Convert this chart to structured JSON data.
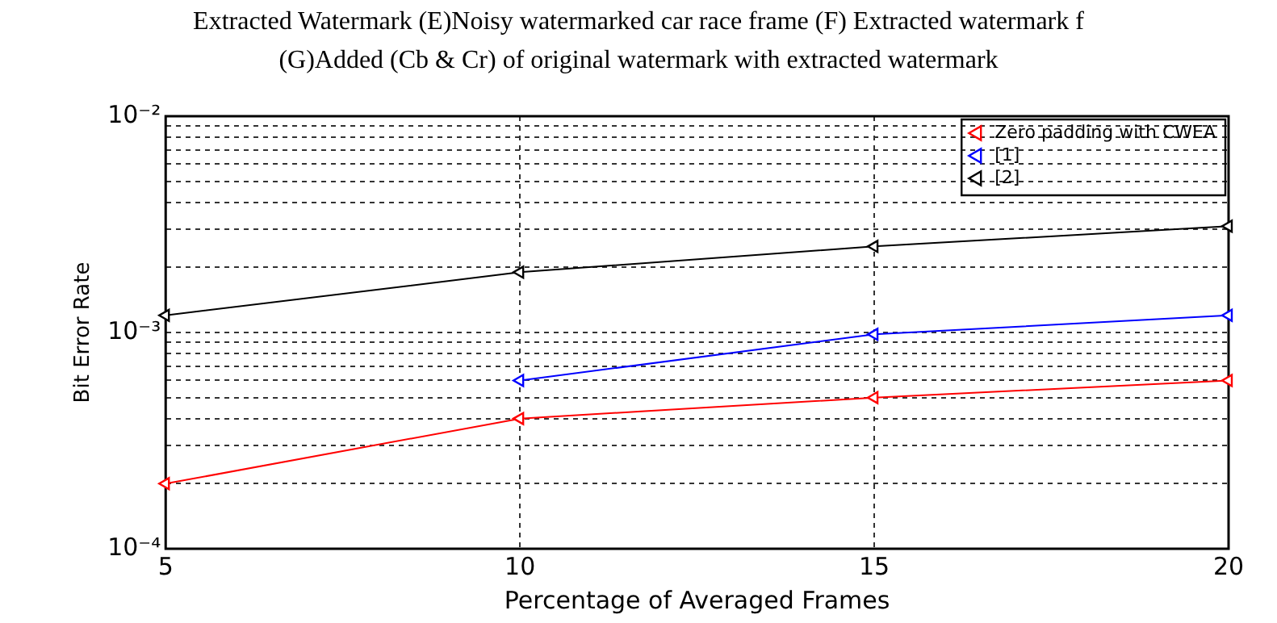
{
  "chart_data": {
    "type": "line",
    "annotations": [
      "Extracted Watermark (E)Noisy watermarked car race frame (F) Extracted watermark f",
      "(G)Added (Cb & Cr) of original watermark with extracted watermark"
    ],
    "xlabel": "Percentage of Averaged Frames",
    "ylabel": "Bit Error Rate",
    "x": [
      5,
      10,
      15,
      20
    ],
    "series": [
      {
        "name": "Zero padding with CWEA",
        "color": "#ff0000",
        "values": [
          0.0002,
          0.0004,
          0.0005,
          0.0006
        ]
      },
      {
        "name": "[1]",
        "color": "#0000ff",
        "values": [
          null,
          0.0006,
          0.00098,
          0.0012
        ]
      },
      {
        "name": "[2]",
        "color": "#000000",
        "values": [
          0.0012,
          0.0019,
          0.0025,
          0.0031
        ]
      }
    ],
    "log": "y",
    "xlim": [
      5,
      20
    ],
    "xticks": [
      5,
      10,
      15,
      20
    ],
    "ylim": [
      0.0001,
      0.01
    ],
    "yticks": [
      {
        "value": 0.0001,
        "label": "10⁻⁴"
      },
      {
        "value": 0.0002,
        "label": null
      },
      {
        "value": 0.0003,
        "label": null
      },
      {
        "value": 0.0004,
        "label": null
      },
      {
        "value": 0.0005,
        "label": null
      },
      {
        "value": 0.0006,
        "label": null
      },
      {
        "value": 0.0007,
        "label": null
      },
      {
        "value": 0.0008,
        "label": null
      },
      {
        "value": 0.0009,
        "label": null
      },
      {
        "value": 0.001,
        "label": "10⁻³"
      },
      {
        "value": 0.002,
        "label": null
      },
      {
        "value": 0.003,
        "label": null
      },
      {
        "value": 0.004,
        "label": null
      },
      {
        "value": 0.005,
        "label": null
      },
      {
        "value": 0.006,
        "label": null
      },
      {
        "value": 0.007,
        "label": null
      },
      {
        "value": 0.008,
        "label": null
      },
      {
        "value": 0.009,
        "label": null
      },
      {
        "value": 0.01,
        "label": "10⁻²"
      }
    ],
    "grid": true,
    "legend": "top right",
    "marker": "triangle",
    "line_style": "solid"
  }
}
